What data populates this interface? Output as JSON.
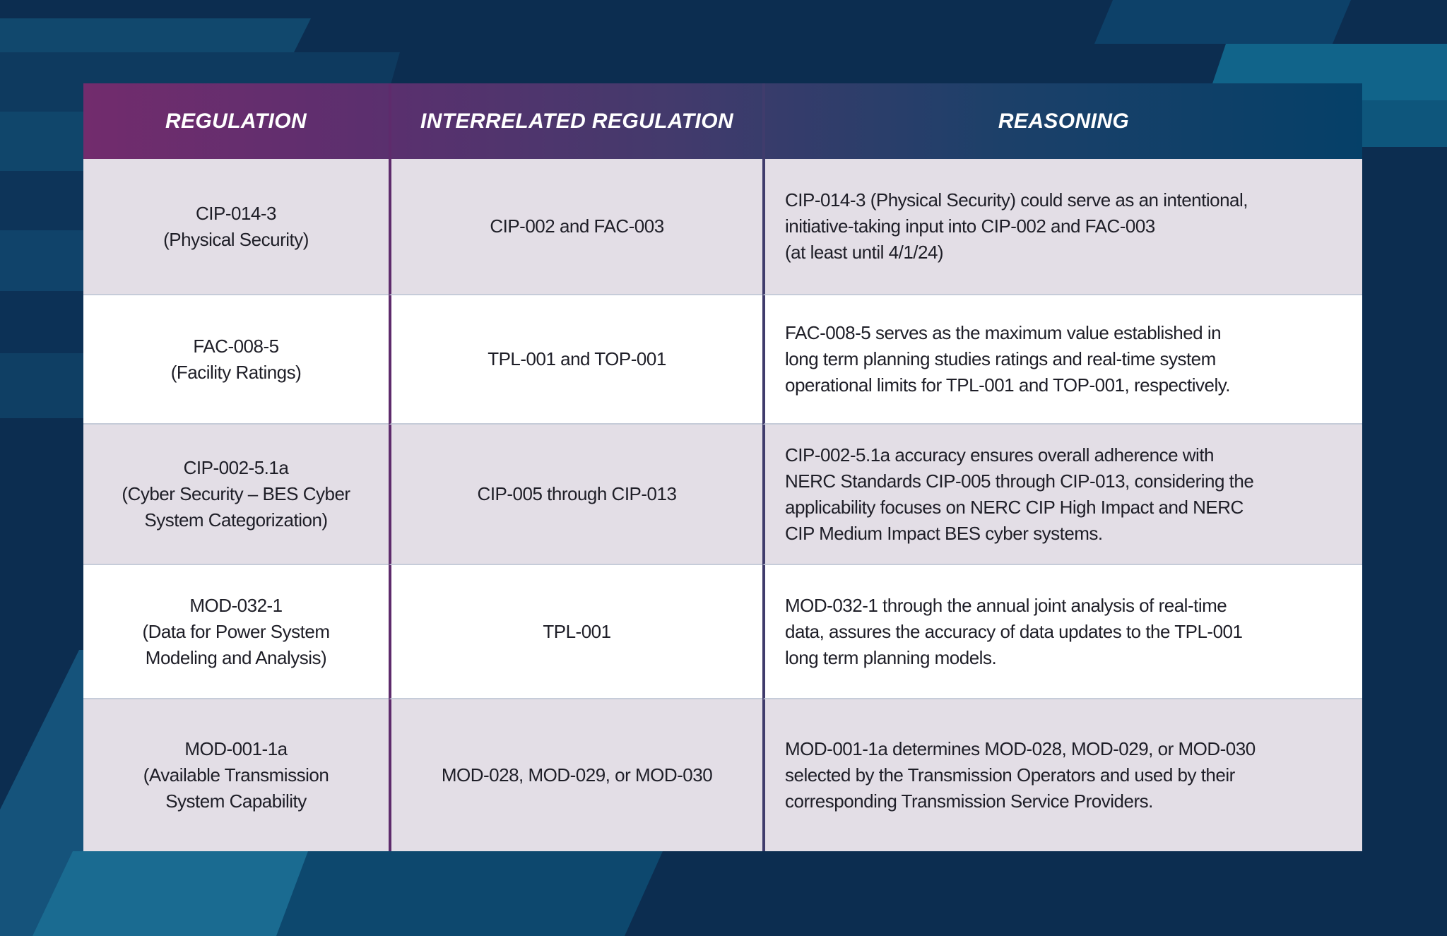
{
  "table": {
    "columns": [
      {
        "label": "REGULATION"
      },
      {
        "label": "INTERRELATED REGULATION"
      },
      {
        "label": "REASONING"
      }
    ],
    "rows": [
      {
        "regulation": "CIP-014-3\n(Physical Security)",
        "interrelated": "CIP-002 and FAC-003",
        "reasoning": "CIP-014-3 (Physical Security) could serve as an intentional,\ninitiative-taking input into CIP-002 and FAC-003\n(at least until 4/1/24)"
      },
      {
        "regulation": "FAC-008-5\n(Facility Ratings)",
        "interrelated": "TPL-001 and TOP-001",
        "reasoning": "FAC-008-5 serves as the maximum value established in\nlong term planning studies ratings and real-time system\noperational limits for TPL-001 and TOP-001, respectively."
      },
      {
        "regulation": "CIP-002-5.1a\n(Cyber Security – BES Cyber\nSystem Categorization)",
        "interrelated": "CIP-005 through CIP-013",
        "reasoning": "CIP-002-5.1a accuracy ensures overall adherence with\nNERC Standards CIP-005 through CIP-013, considering the\napplicability focuses on NERC CIP High Impact and NERC\nCIP Medium Impact BES cyber systems."
      },
      {
        "regulation": "MOD-032-1\n(Data for Power System\nModeling and Analysis)",
        "interrelated": "TPL-001",
        "reasoning": "MOD-032-1 through the annual joint analysis of real-time\ndata, assures the accuracy of data updates to the TPL-001\nlong term planning models."
      },
      {
        "regulation": "MOD-001-1a\n(Available Transmission\nSystem Capability",
        "interrelated": "MOD-028, MOD-029, or MOD-030",
        "reasoning": "MOD-001-1a determines MOD-028, MOD-029, or MOD-030\nselected by the Transmission Operators and used by their\ncorresponding Transmission Service Providers."
      }
    ]
  },
  "colors": {
    "background": "#0c2d50",
    "header_gradient_left": "#722c6d",
    "header_gradient_right": "#054068",
    "row_shaded": "#e3dee6",
    "row_plain": "#ffffff",
    "divider_left": "#5e2b6c",
    "divider_right": "#403c6c",
    "body_text": "#1e1e27",
    "header_text": "#ffffff",
    "accent_teal": "#1a6b91"
  }
}
